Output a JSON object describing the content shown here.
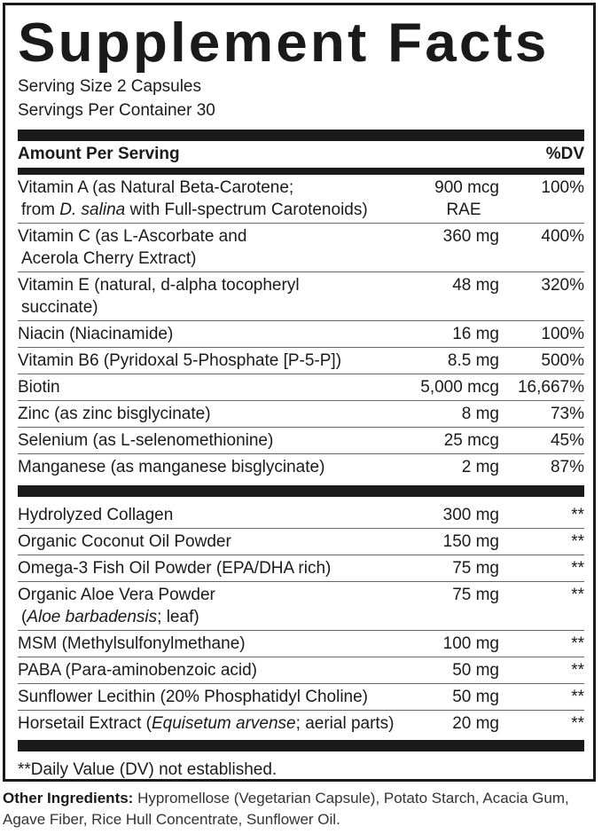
{
  "title": "Supplement Facts",
  "serving_size": "Serving Size 2 Capsules",
  "servings_per_container": "Servings Per Container 30",
  "header": {
    "amount": "Amount Per Serving",
    "dv": "%DV"
  },
  "vitamins": [
    {
      "name": "Vitamin A (as Natural Beta-Carotene;",
      "name2_pre": "from ",
      "name2_italic": "D. salina",
      "name2_post": " with Full-spectrum Carotenoids)",
      "amount": "900 mcg",
      "amount2": "RAE",
      "dv": "100%"
    },
    {
      "name": "Vitamin C (as  L-Ascorbate and",
      "name2_post": "Acerola Cherry Extract)",
      "amount": "360 mg",
      "dv": "400%"
    },
    {
      "name": "Vitamin E (natural, d-alpha tocopheryl",
      "name2_post": "succinate)",
      "amount": "48 mg",
      "dv": "320%"
    },
    {
      "name": "Niacin (Niacinamide)",
      "amount": "16 mg",
      "dv": "100%"
    },
    {
      "name": "Vitamin B6 (Pyridoxal 5-Phosphate [P-5-P])",
      "amount": "8.5 mg",
      "dv": "500%"
    },
    {
      "name": "Biotin",
      "amount": "5,000 mcg",
      "dv": "16,667%"
    },
    {
      "name": "Zinc (as zinc bisglycinate)",
      "amount": "8 mg",
      "dv": "73%"
    },
    {
      "name": "Selenium (as L-selenomethionine)",
      "amount": "25 mcg",
      "dv": "45%"
    },
    {
      "name": "Manganese (as manganese bisglycinate)",
      "amount": "2 mg",
      "dv": "87%"
    }
  ],
  "others": [
    {
      "name": "Hydrolyzed Collagen",
      "amount": "300 mg",
      "dv": "**"
    },
    {
      "name": "Organic Coconut Oil Powder",
      "amount": "150 mg",
      "dv": "**"
    },
    {
      "name": "Omega-3 Fish Oil Powder (EPA/DHA rich)",
      "amount": "75 mg",
      "dv": "**"
    },
    {
      "name": "Organic Aloe Vera Powder",
      "name2_pre": "(",
      "name2_italic": "Aloe barbadensis",
      "name2_post": "; leaf)",
      "amount": "75 mg",
      "dv": "**"
    },
    {
      "name": "MSM (Methylsulfonylmethane)",
      "amount": "100 mg",
      "dv": "**"
    },
    {
      "name": "PABA (Para-aminobenzoic acid)",
      "amount": "50 mg",
      "dv": "**"
    },
    {
      "name": "Sunflower Lecithin (20% Phosphatidyl Choline)",
      "amount": "50 mg",
      "dv": "**"
    },
    {
      "name": "Horsetail Extract (",
      "name_italic": "Equisetum arvense",
      "name_post": "; aerial parts)",
      "amount": "20 mg",
      "dv": "**"
    }
  ],
  "footnote": "**Daily Value (DV) not established.",
  "other_ingredients": {
    "label": "Other Ingredients:",
    "text": " Hypromellose (Vegetarian Capsule), Potato Starch, Acacia Gum, Agave Fiber, Rice Hull Concentrate, Sunflower Oil."
  }
}
